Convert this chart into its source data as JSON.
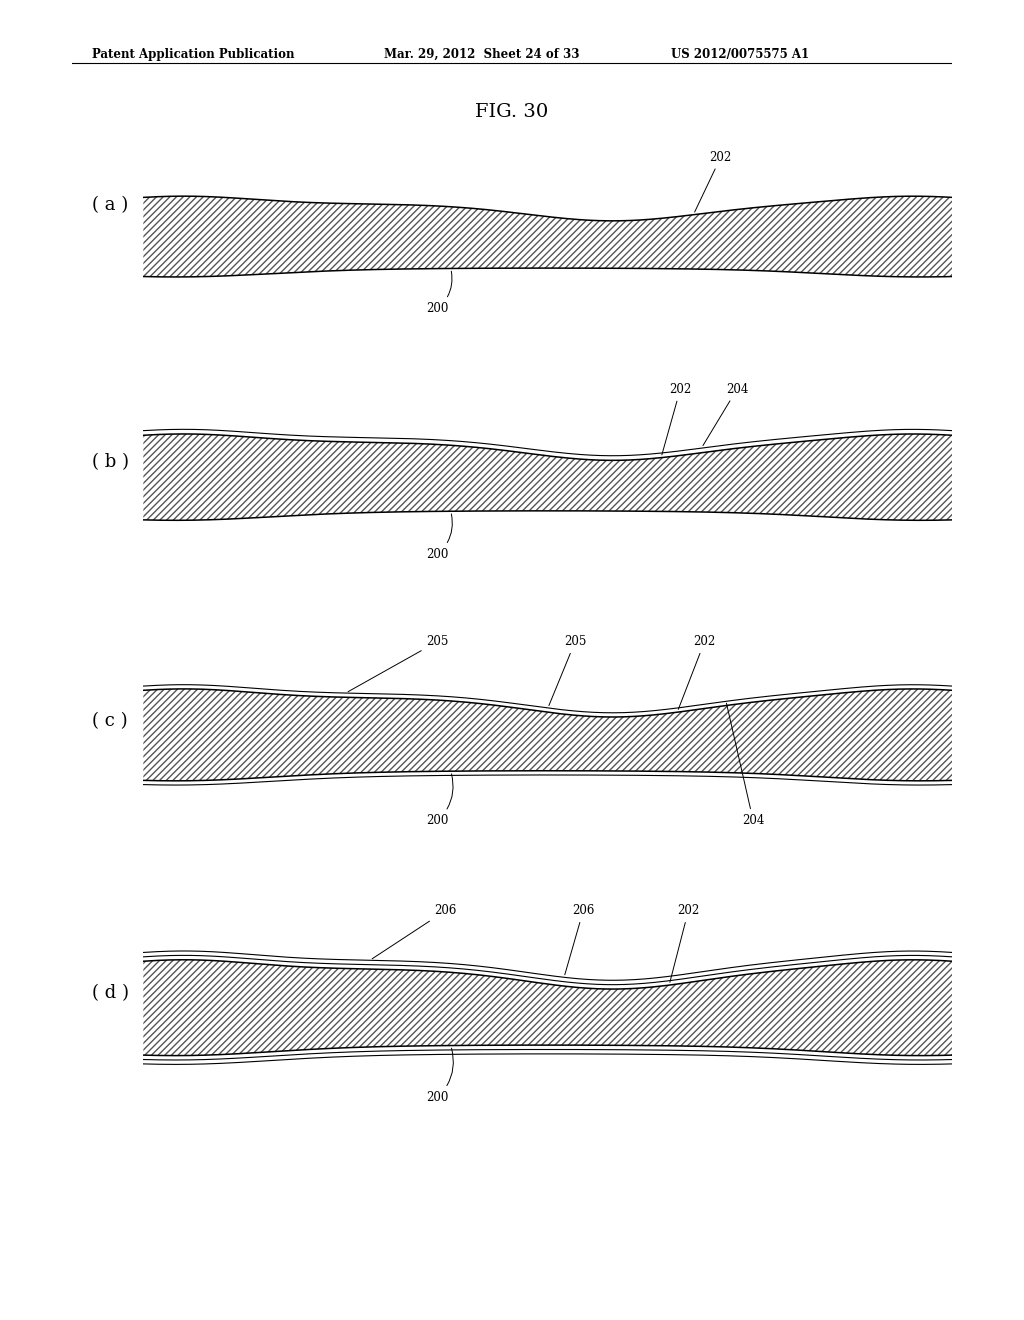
{
  "header_left": "Patent Application Publication",
  "header_mid": "Mar. 29, 2012  Sheet 24 of 33",
  "header_right": "US 2012/0075575 A1",
  "title": "FIG. 30",
  "panels": [
    "( a )",
    "( b )",
    "( c )",
    "( d )"
  ],
  "bg_color": "#ffffff"
}
